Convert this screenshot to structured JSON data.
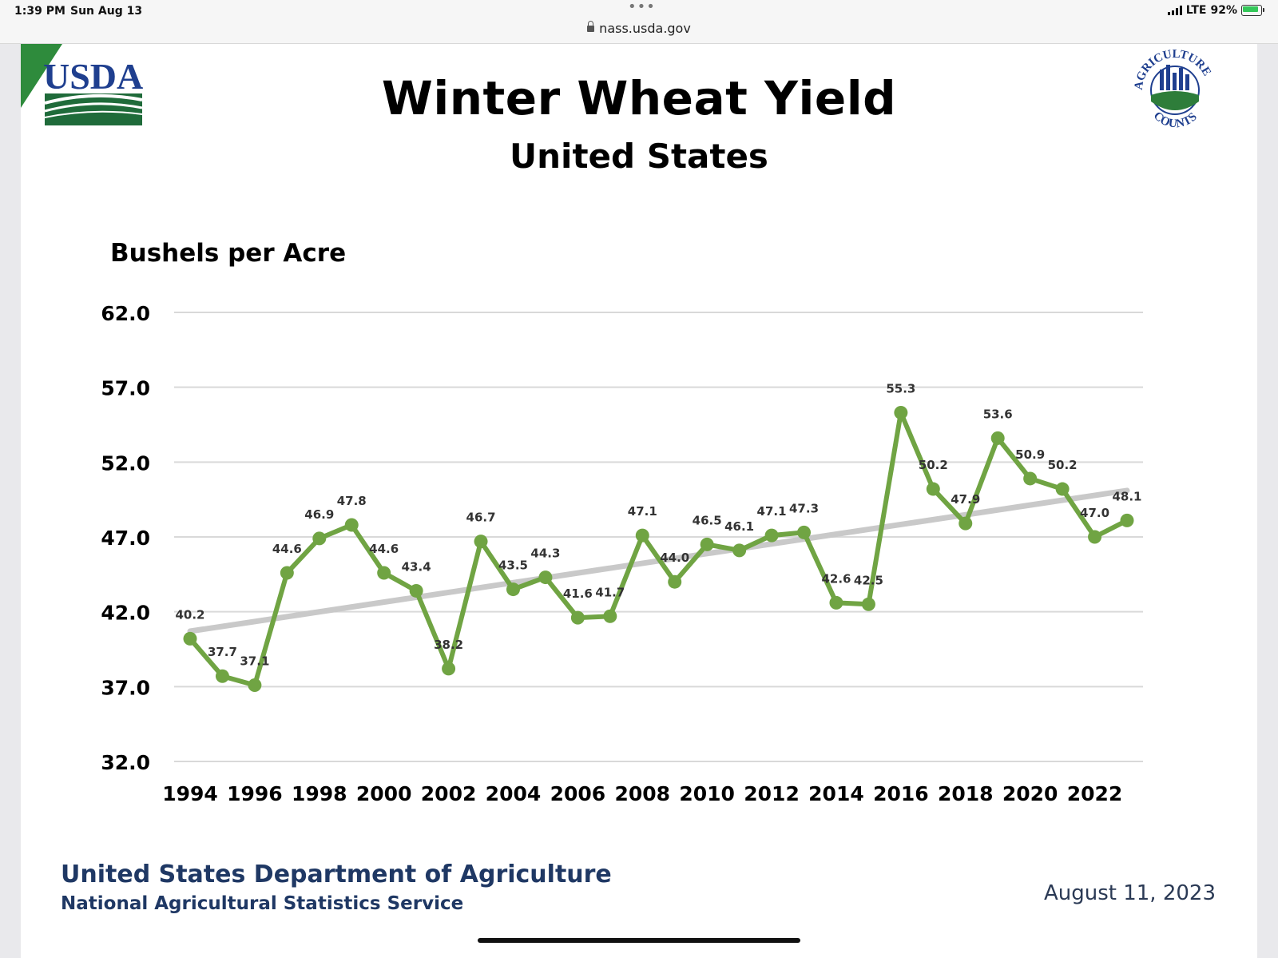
{
  "status_bar": {
    "time": "1:39 PM",
    "date": "Sun Aug 13",
    "url": "nass.usda.gov",
    "network": "LTE",
    "battery": "92%"
  },
  "slide": {
    "title": "Winter Wheat Yield",
    "subtitle": "United States",
    "y_axis_title": "Bushels per Acre",
    "footer_org": "United States Department of Agriculture",
    "footer_agency": "National Agricultural Statistics Service",
    "date": "August 11, 2023",
    "logo_left_text": "USDA",
    "logo_right_text_top": "AGRICULTURE",
    "logo_right_text_bottom": "COUNTS"
  },
  "colors": {
    "series": "#70a443",
    "trend": "#c9c9c9",
    "grid": "#d9d9d9",
    "footer_text": "#1f3864",
    "usda_blue": "#1f3f8f",
    "usda_green": "#2e7d3a"
  },
  "chart_data": {
    "type": "line",
    "title": "Winter Wheat Yield",
    "subtitle": "United States",
    "ylabel": "Bushels per Acre",
    "xlabel": "",
    "ylim": [
      32.0,
      62.0
    ],
    "y_ticks": [
      "62.0",
      "57.0",
      "52.0",
      "47.0",
      "42.0",
      "37.0",
      "32.0"
    ],
    "x_tick_labels": [
      "1994",
      "1996",
      "1998",
      "2000",
      "2002",
      "2004",
      "2006",
      "2008",
      "2010",
      "2012",
      "2014",
      "2016",
      "2018",
      "2020",
      "2022"
    ],
    "grid": true,
    "x": [
      1994,
      1995,
      1996,
      1997,
      1998,
      1999,
      2000,
      2001,
      2002,
      2003,
      2004,
      2005,
      2006,
      2007,
      2008,
      2009,
      2010,
      2011,
      2012,
      2013,
      2014,
      2015,
      2016,
      2017,
      2018,
      2019,
      2020,
      2021,
      2022,
      2023
    ],
    "series": [
      {
        "name": "Yield",
        "values": [
          40.2,
          37.7,
          37.1,
          44.6,
          46.9,
          47.8,
          44.6,
          43.4,
          38.2,
          46.7,
          43.5,
          44.3,
          41.6,
          41.7,
          47.1,
          44.0,
          46.5,
          46.1,
          47.1,
          47.3,
          42.6,
          42.5,
          55.3,
          50.2,
          47.9,
          53.6,
          50.9,
          50.2,
          47.0,
          48.1
        ],
        "labels": [
          "40.2",
          "37.7",
          "37.1",
          "44.6",
          "46.9",
          "47.8",
          "44.6",
          "43.4",
          "38.2",
          "46.7",
          "43.5",
          "44.3",
          "41.6",
          "41.7",
          "47.1",
          "44.0",
          "46.5",
          "46.1",
          "47.1",
          "47.3",
          "42.6",
          "42.5",
          "55.3",
          "50.2",
          "47.9",
          "53.6",
          "50.9",
          "50.2",
          "47.0",
          "48.1"
        ]
      }
    ],
    "trendline": {
      "name": "Linear trend",
      "start": [
        1994,
        40.7
      ],
      "end": [
        2023,
        50.1
      ]
    }
  }
}
